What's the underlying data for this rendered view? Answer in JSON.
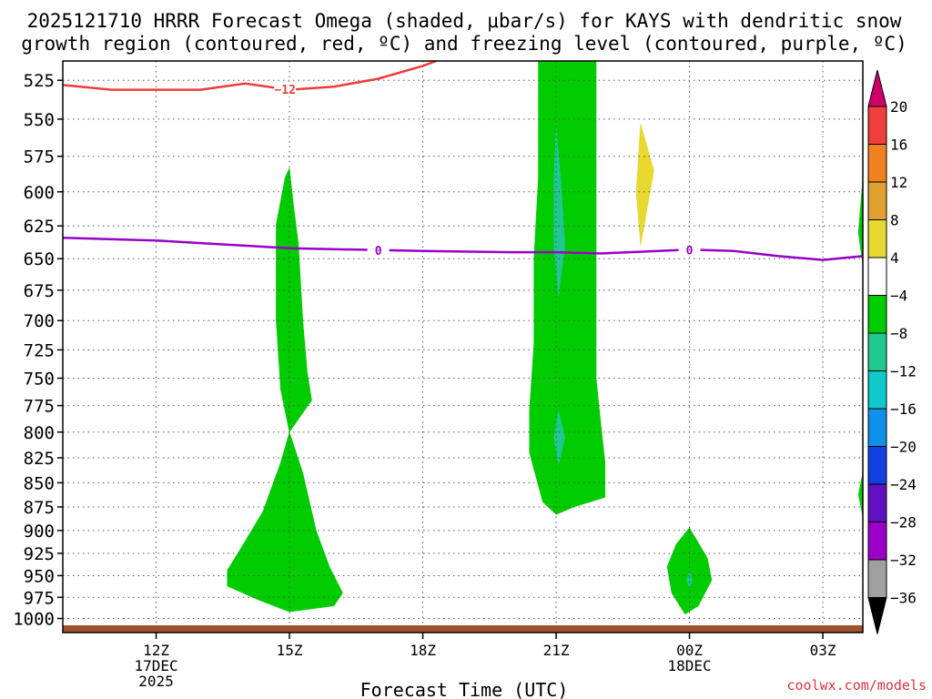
{
  "chart_data": {
    "type": "contour",
    "title_lines": [
      "2025121710 HRRR Forecast Omega (shaded, μbar/s) for KAYS with dendritic snow",
      "growth region (contoured, red, ºC) and freezing level (contoured, purple, ºC)"
    ],
    "xlabel": "Forecast Time (UTC)",
    "watermark": "coolwx.com/models",
    "x_hours_range": [
      9.9,
      27.9
    ],
    "pressure_range_hpa": [
      513,
      1017
    ],
    "x_ticks": [
      {
        "hour": 12,
        "lines": [
          "12Z",
          "17DEC",
          "2025"
        ]
      },
      {
        "hour": 15,
        "lines": [
          "15Z"
        ]
      },
      {
        "hour": 18,
        "lines": [
          "18Z"
        ]
      },
      {
        "hour": 21,
        "lines": [
          "21Z"
        ]
      },
      {
        "hour": 24,
        "lines": [
          "00Z",
          "18DEC"
        ]
      },
      {
        "hour": 27,
        "lines": [
          "03Z"
        ]
      }
    ],
    "y_ticks": [
      525,
      550,
      575,
      600,
      625,
      650,
      675,
      700,
      725,
      750,
      775,
      800,
      825,
      850,
      875,
      900,
      925,
      950,
      975,
      1000
    ],
    "colorbar": {
      "labels": [
        "20",
        "16",
        "12",
        "8",
        "4",
        "−4",
        "−8",
        "−12",
        "−16",
        "−20",
        "−24",
        "−28",
        "−32",
        "−36"
      ],
      "colors": [
        "#d0006a",
        "#f0403c",
        "#f08020",
        "#e0a030",
        "#e8d830",
        "#ffffff",
        "#00cc00",
        "#20c890",
        "#10c8c8",
        "#1090e8",
        "#1040e0",
        "#6010c0",
        "#9a00c8",
        "#a0a0a0",
        "#000000"
      ]
    },
    "freezing_level": {
      "label": "0",
      "color": "#9a00c8",
      "label_hours": [
        17.0,
        24.0
      ],
      "points": [
        [
          9.9,
          634
        ],
        [
          12,
          636
        ],
        [
          15,
          642
        ],
        [
          18,
          644
        ],
        [
          20,
          645
        ],
        [
          21,
          645
        ],
        [
          22,
          646
        ],
        [
          24,
          643
        ],
        [
          25,
          644
        ],
        [
          26,
          648
        ],
        [
          27,
          651
        ],
        [
          27.9,
          648
        ]
      ]
    },
    "dgz_contour": {
      "label": "−12",
      "color": "#ee3c3c",
      "label_hours": [
        14.9
      ],
      "points": [
        [
          9.9,
          528
        ],
        [
          11,
          531
        ],
        [
          13,
          531
        ],
        [
          14,
          527
        ],
        [
          15,
          531
        ],
        [
          16,
          529
        ],
        [
          17,
          524
        ],
        [
          18,
          516
        ],
        [
          18.3,
          513
        ]
      ]
    },
    "omega_areas": [
      {
        "level": "-4 to -8",
        "color": "#00cc00",
        "points": [
          [
            14.7,
            624
          ],
          [
            14.9,
            590
          ],
          [
            15.0,
            583
          ],
          [
            15.1,
            612
          ],
          [
            15.2,
            638
          ],
          [
            15.3,
            700
          ],
          [
            15.4,
            745
          ],
          [
            15.5,
            770
          ],
          [
            15.0,
            800
          ],
          [
            14.8,
            760
          ],
          [
            14.7,
            700
          ],
          [
            14.7,
            660
          ]
        ]
      },
      {
        "level": "-4 to -8",
        "color": "#00cc00",
        "points": [
          [
            15.0,
            800
          ],
          [
            15.3,
            840
          ],
          [
            15.6,
            900
          ],
          [
            15.9,
            940
          ],
          [
            16.2,
            970
          ],
          [
            16.0,
            985
          ],
          [
            15.0,
            992
          ],
          [
            14.3,
            978
          ],
          [
            13.6,
            962
          ],
          [
            13.6,
            944
          ],
          [
            13.9,
            920
          ],
          [
            14.4,
            880
          ],
          [
            14.8,
            830
          ]
        ]
      },
      {
        "level": "-4 to -8",
        "color": "#00cc00",
        "points": [
          [
            20.6,
            513
          ],
          [
            21.9,
            513
          ],
          [
            21.9,
            580
          ],
          [
            21.9,
            650
          ],
          [
            21.9,
            700
          ],
          [
            21.9,
            750
          ],
          [
            22.0,
            790
          ],
          [
            22.1,
            830
          ],
          [
            22.1,
            865
          ],
          [
            21.4,
            875
          ],
          [
            21.0,
            883
          ],
          [
            20.7,
            870
          ],
          [
            20.4,
            820
          ],
          [
            20.4,
            780
          ],
          [
            20.5,
            720
          ],
          [
            20.5,
            650
          ],
          [
            20.6,
            590
          ]
        ]
      },
      {
        "level": "-8 to -12",
        "color": "#20c890",
        "points": [
          [
            21.0,
            555
          ],
          [
            21.1,
            590
          ],
          [
            21.2,
            640
          ],
          [
            21.05,
            680
          ],
          [
            20.95,
            640
          ],
          [
            20.95,
            590
          ]
        ]
      },
      {
        "level": "-8 to -12",
        "color": "#20c890",
        "points": [
          [
            21.05,
            780
          ],
          [
            21.2,
            805
          ],
          [
            21.05,
            832
          ],
          [
            20.95,
            805
          ]
        ]
      },
      {
        "level": "-4 to -8",
        "color": "#00cc00",
        "points": [
          [
            24.0,
            897
          ],
          [
            24.4,
            930
          ],
          [
            24.5,
            955
          ],
          [
            24.2,
            985
          ],
          [
            23.9,
            995
          ],
          [
            23.6,
            970
          ],
          [
            23.5,
            940
          ],
          [
            23.7,
            915
          ]
        ]
      },
      {
        "level": "-8 to -12",
        "color": "#20c890",
        "points": [
          [
            24.0,
            945
          ],
          [
            24.06,
            955
          ],
          [
            24.0,
            965
          ],
          [
            23.94,
            955
          ]
        ]
      },
      {
        "level": "4 to 8",
        "color": "#e8d830",
        "points": [
          [
            22.9,
            553
          ],
          [
            23.2,
            585
          ],
          [
            22.9,
            640
          ],
          [
            22.8,
            600
          ]
        ]
      },
      {
        "level": "-4 to -8",
        "color": "#00cc00",
        "points": [
          [
            27.9,
            590
          ],
          [
            27.9,
            655
          ],
          [
            27.8,
            630
          ]
        ]
      },
      {
        "level": "-4 to -8",
        "color": "#00cc00",
        "points": [
          [
            27.9,
            840
          ],
          [
            27.9,
            885
          ],
          [
            27.8,
            862
          ]
        ]
      }
    ]
  }
}
